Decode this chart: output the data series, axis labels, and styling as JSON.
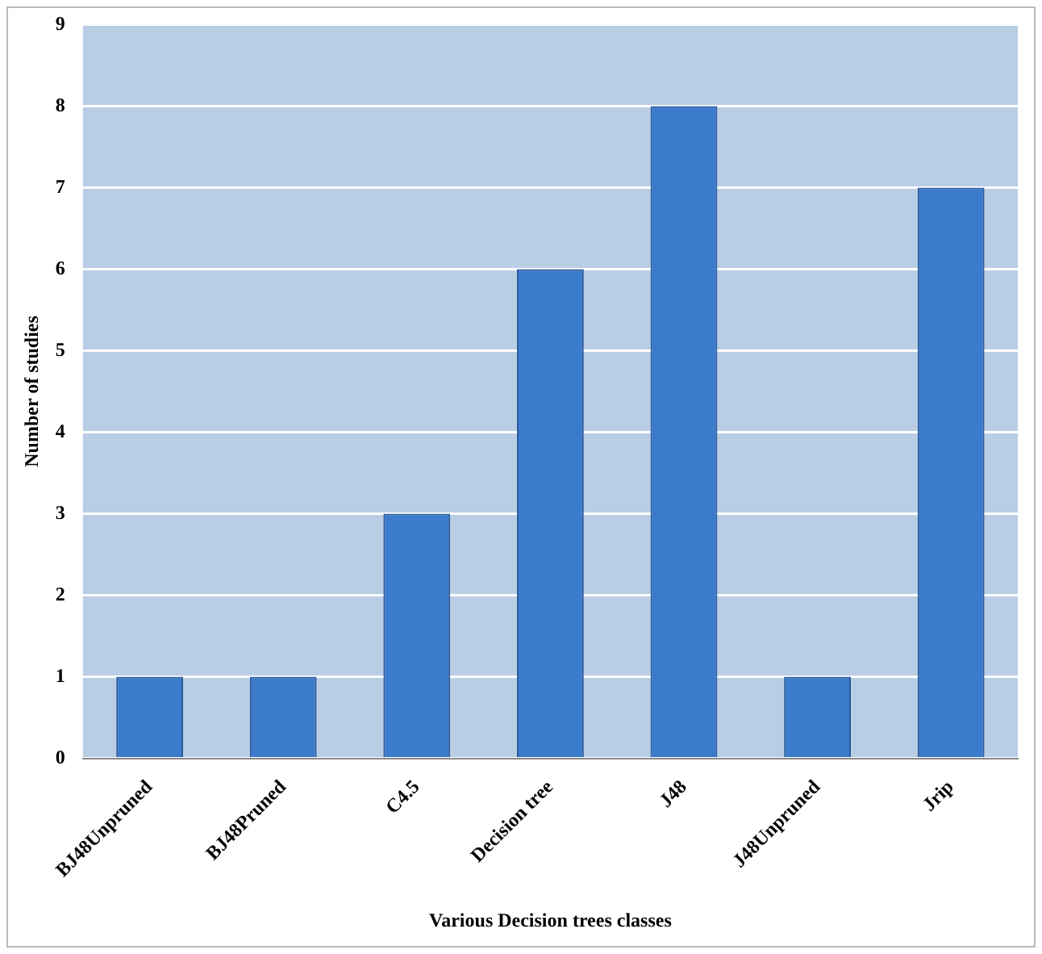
{
  "chart_data": {
    "type": "bar",
    "xlabel": "Various Decision trees classes",
    "ylabel": "Number of studies",
    "categories": [
      "BJ48Unpruned",
      "BJ48Pruned",
      "C4.5",
      "Decision tree",
      "J48",
      "J48Unpruned",
      "Jrip"
    ],
    "values": [
      1,
      1,
      3,
      6,
      8,
      1,
      7
    ],
    "color": "#3b7bcc",
    "ylim": [
      0,
      9
    ],
    "yticks": [
      0,
      1,
      2,
      3,
      4,
      5,
      6,
      7,
      8,
      9
    ],
    "grid": "y"
  }
}
